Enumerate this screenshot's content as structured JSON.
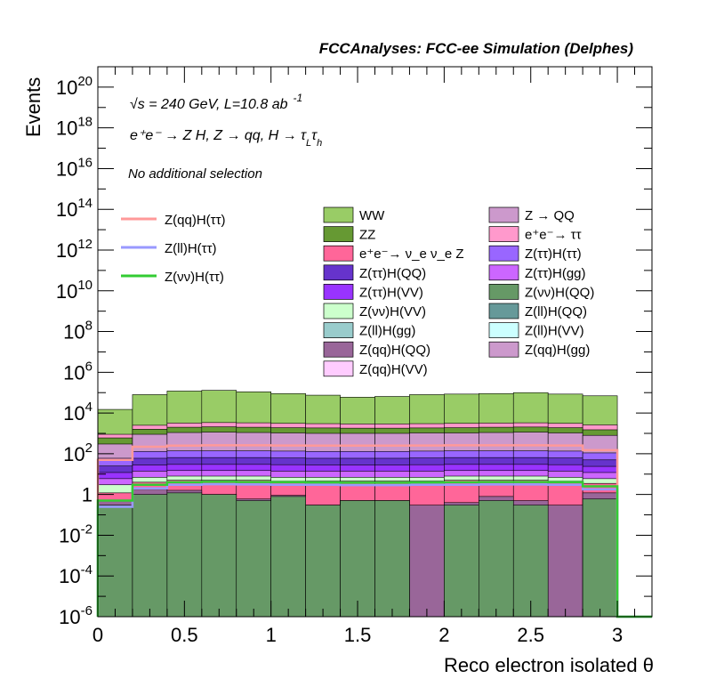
{
  "header": {
    "title": "FCCAnalyses: FCC-ee Simulation (Delphes)"
  },
  "annotations": {
    "line1": "√s = 240 GeV, L=10.8 ab",
    "line1_exp": "-1",
    "line2": "e⁺e⁻ → Z H, Z → qq, H → τ",
    "line2_sub1": "L",
    "line2_mid": "τ",
    "line2_sub2": "h",
    "line3": "No additional selection"
  },
  "legend_lines": [
    {
      "label": "Z(qq)H(ττ)",
      "color": "#ff9999"
    },
    {
      "label": "Z(ll)H(ττ)",
      "color": "#9999ff"
    },
    {
      "label": "Z(νν)H(ττ)",
      "color": "#33cc33"
    }
  ],
  "legend_fills_col1": [
    {
      "label": "WW",
      "color": "#99cc66"
    },
    {
      "label": "ZZ",
      "color": "#669933"
    },
    {
      "label": "e⁺e⁻→ ν_e ν_e Z",
      "color": "#ff6699"
    },
    {
      "label": "Z(ττ)H(QQ)",
      "color": "#6633cc"
    },
    {
      "label": "Z(ττ)H(VV)",
      "color": "#9933ff"
    },
    {
      "label": "Z(νν)H(VV)",
      "color": "#ccffcc"
    },
    {
      "label": "Z(ll)H(gg)",
      "color": "#99cccc"
    },
    {
      "label": "Z(qq)H(QQ)",
      "color": "#996699"
    },
    {
      "label": "Z(qq)H(VV)",
      "color": "#ffccff"
    }
  ],
  "legend_fills_col2": [
    {
      "label": "Z → QQ",
      "color": "#cc99cc"
    },
    {
      "label": "e⁺e⁻→ ττ",
      "color": "#ff99cc"
    },
    {
      "label": "Z(ττ)H(ττ)",
      "color": "#9966ff"
    },
    {
      "label": "Z(ττ)H(gg)",
      "color": "#cc66ff"
    },
    {
      "label": "Z(νν)H(QQ)",
      "color": "#669966"
    },
    {
      "label": "Z(ll)H(QQ)",
      "color": "#669999"
    },
    {
      "label": "Z(ll)H(VV)",
      "color": "#ccffff"
    },
    {
      "label": "Z(qq)H(gg)",
      "color": "#cc99cc"
    }
  ],
  "chart_data": {
    "type": "area",
    "xlabel": "Reco electron isolated θ",
    "ylabel": "Events",
    "xlim": [
      0,
      3.2
    ],
    "ylim": [
      1e-06,
      1e+21
    ],
    "log_y": true,
    "x_ticks": [
      "0",
      "0.5",
      "1",
      "1.5",
      "2",
      "2.5",
      "3"
    ],
    "x_tick_values": [
      0,
      0.5,
      1,
      1.5,
      2,
      2.5,
      3
    ],
    "y_ticks": [
      {
        "base": "10",
        "exp": "-6",
        "value": 1e-06
      },
      {
        "base": "10",
        "exp": "-4",
        "value": 0.0001
      },
      {
        "base": "10",
        "exp": "-2",
        "value": 0.01
      },
      {
        "base": "1",
        "exp": "",
        "value": 1
      },
      {
        "base": "10",
        "exp": "2",
        "value": 100.0
      },
      {
        "base": "10",
        "exp": "4",
        "value": 10000.0
      },
      {
        "base": "10",
        "exp": "6",
        "value": 1000000.0
      },
      {
        "base": "10",
        "exp": "8",
        "value": 100000000.0
      },
      {
        "base": "10",
        "exp": "10",
        "value": 10000000000.0
      },
      {
        "base": "10",
        "exp": "12",
        "value": 1000000000000.0
      },
      {
        "base": "10",
        "exp": "14",
        "value": 100000000000000.0
      },
      {
        "base": "10",
        "exp": "16",
        "value": 1e+16
      },
      {
        "base": "10",
        "exp": "18",
        "value": 1e+18
      },
      {
        "base": "10",
        "exp": "20",
        "value": 1e+20
      }
    ],
    "bin_edges": [
      0,
      0.2,
      0.4,
      0.6,
      0.8,
      1.0,
      1.2,
      1.4,
      1.6,
      1.8,
      2.0,
      2.2,
      2.4,
      2.6,
      2.8,
      3.0,
      3.2
    ],
    "stack_totals": [
      {
        "name": "WW",
        "color": "#99cc66",
        "values": [
          15000,
          80000,
          120000,
          130000,
          110000,
          90000,
          75000,
          60000,
          65000,
          80000,
          85000,
          90000,
          100000,
          85000,
          70000,
          0
        ]
      },
      {
        "name": "e⁺e⁻→ ττ",
        "color": "#ff99cc",
        "values": [
          900,
          2500,
          3200,
          3400,
          3300,
          3100,
          3000,
          2900,
          2900,
          3000,
          3100,
          3200,
          3300,
          3100,
          2600,
          0
        ]
      },
      {
        "name": "ZZ",
        "color": "#669933",
        "values": [
          600,
          1600,
          2000,
          2100,
          2000,
          1900,
          1850,
          1800,
          1800,
          1850,
          1900,
          2000,
          2050,
          1900,
          1500,
          0
        ]
      },
      {
        "name": "Z → QQ",
        "color": "#cc99cc",
        "values": [
          300,
          900,
          1100,
          1150,
          1100,
          1050,
          1000,
          1000,
          1000,
          1050,
          1050,
          1100,
          1150,
          1050,
          800,
          0
        ]
      },
      {
        "name": "Z(ττ)H(ττ)",
        "color": "#9966ff",
        "values": [
          60,
          130,
          140,
          140,
          140,
          135,
          130,
          130,
          130,
          135,
          140,
          140,
          140,
          135,
          110,
          0
        ]
      },
      {
        "name": "Z(ττ)H(QQ)",
        "color": "#6633cc",
        "values": [
          25,
          60,
          65,
          65,
          65,
          62,
          60,
          60,
          60,
          62,
          65,
          65,
          65,
          62,
          50,
          0
        ]
      },
      {
        "name": "Z(ττ)H(VV)",
        "color": "#9933ff",
        "values": [
          12,
          28,
          30,
          30,
          30,
          29,
          28,
          28,
          28,
          29,
          30,
          30,
          30,
          29,
          24,
          0
        ]
      },
      {
        "name": "Z(ττ)H(gg)",
        "color": "#cc66ff",
        "values": [
          6,
          14,
          15,
          15,
          15,
          14,
          14,
          14,
          14,
          14,
          15,
          15,
          15,
          14,
          12,
          0
        ]
      },
      {
        "name": "Z(νν)H(VV)",
        "color": "#ccffcc",
        "values": [
          3,
          7,
          8,
          8,
          8,
          7,
          7,
          7,
          7,
          7,
          8,
          8,
          8,
          7,
          6,
          0
        ]
      },
      {
        "name": "e⁺e⁻→ ν_e ν_e Z",
        "color": "#ff6699",
        "values": [
          1.2,
          4,
          5,
          5,
          5,
          4.5,
          4.5,
          4.5,
          4.5,
          4.5,
          5,
          5,
          5,
          4.5,
          3.5,
          0
        ]
      },
      {
        "name": "Z(qq)H(QQ)",
        "color": "#996699",
        "values": [
          0.5,
          1.8,
          1.6,
          1.0,
          0.6,
          0.9,
          0.3,
          0.5,
          0.5,
          0.3,
          0.4,
          0.8,
          0.5,
          0.3,
          1.2,
          0
        ]
      },
      {
        "name": "Z(νν)H(QQ)",
        "color": "#669966",
        "values": [
          0.3,
          1.0,
          1.2,
          1.0,
          0.5,
          0.8,
          0.3,
          0.5,
          0.5,
          5e-07,
          0.3,
          0.5,
          0.3,
          0.0,
          0.6,
          0
        ]
      }
    ],
    "signal_lines": [
      {
        "name": "Z(qq)H(ττ)",
        "color": "#ff9999",
        "values": [
          50,
          220,
          250,
          260,
          260,
          255,
          250,
          250,
          250,
          255,
          260,
          260,
          260,
          255,
          150,
          1e-07
        ]
      },
      {
        "name": "Z(ll)H(ττ)",
        "color": "#9999ff",
        "values": [
          0.25,
          2.0,
          3.0,
          3.2,
          3.1,
          3.0,
          3.0,
          2.9,
          2.9,
          3.0,
          3.0,
          3.1,
          3.1,
          3.0,
          1.8,
          1e-07
        ]
      },
      {
        "name": "Z(νν)H(ττ)",
        "color": "#33cc33",
        "values": [
          0.5,
          3.0,
          4.0,
          4.2,
          4.1,
          4.0,
          3.9,
          3.8,
          3.8,
          3.9,
          4.0,
          4.1,
          4.1,
          4.0,
          2.5,
          1e-07
        ]
      }
    ]
  }
}
